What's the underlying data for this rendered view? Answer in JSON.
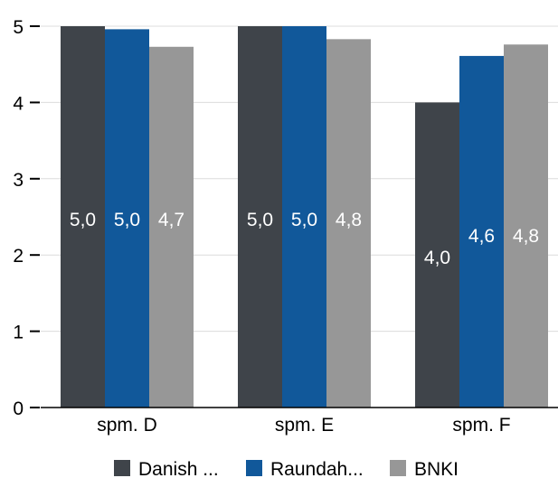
{
  "chart_data": {
    "type": "bar",
    "title": "",
    "xlabel": "",
    "ylabel": "",
    "categories": [
      "spm. D",
      "spm. E",
      "spm. F"
    ],
    "ylim": [
      0,
      5
    ],
    "yticks": [
      "0",
      "1",
      "2",
      "3",
      "4",
      "5"
    ],
    "grid": true,
    "legend_position": "bottom",
    "series": [
      {
        "name": "Danish ...",
        "color": "#3f444a",
        "values": [
          5.0,
          5.0,
          4.0
        ],
        "labels": [
          "5,0",
          "5,0",
          "4,0"
        ]
      },
      {
        "name": "Raundah...",
        "color": "#11589a",
        "values": [
          4.96,
          5.0,
          4.61
        ],
        "labels": [
          "5,0",
          "5,0",
          "4,6"
        ]
      },
      {
        "name": "BNKI",
        "color": "#979797",
        "values": [
          4.73,
          4.83,
          4.76
        ],
        "labels": [
          "4,7",
          "4,8",
          "4,8"
        ]
      }
    ]
  }
}
